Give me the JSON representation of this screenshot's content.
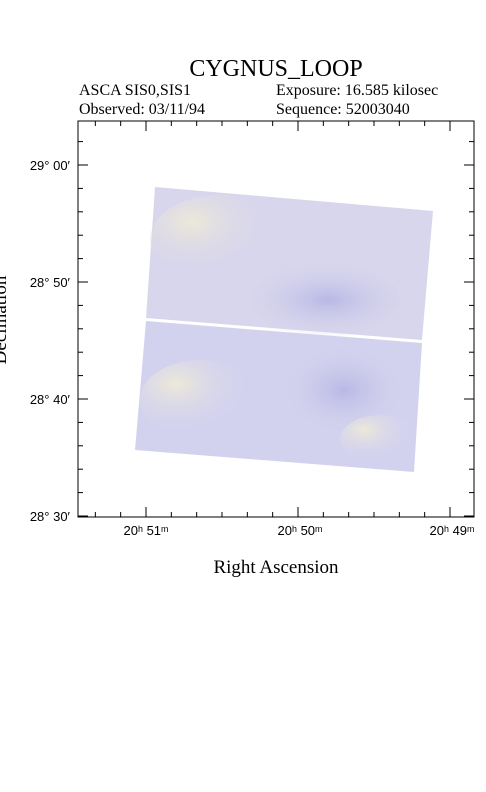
{
  "header": {
    "title": "CYGNUS_LOOP",
    "instrument": "ASCA SIS0,SIS1",
    "exposure": "Exposure: 16.585 kilosec",
    "observed": "Observed: 03/11/94",
    "sequence": "Sequence: 52003040"
  },
  "axes": {
    "x_label": "Right Ascension",
    "y_label": "Declination",
    "y_tick_labels": [
      "29° 00′",
      "28° 50′",
      "28° 40′",
      "28° 30′"
    ],
    "x_tick_labels": [
      "20ʰ 51ᵐ",
      "20ʰ 50ᵐ",
      "20ʰ 49ᵐ"
    ]
  }
}
